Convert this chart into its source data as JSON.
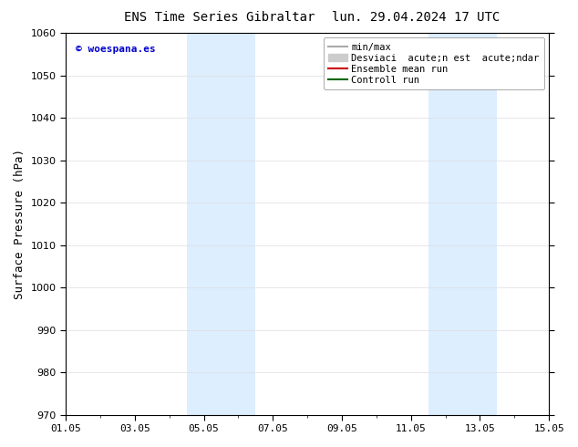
{
  "title_left": "ENS Time Series Gibraltar",
  "title_right": "lun. 29.04.2024 17 UTC",
  "ylabel": "Surface Pressure (hPa)",
  "ylim": [
    970,
    1060
  ],
  "yticks": [
    970,
    980,
    990,
    1000,
    1010,
    1020,
    1030,
    1040,
    1050,
    1060
  ],
  "xtick_labels": [
    "01.05",
    "03.05",
    "05.05",
    "07.05",
    "09.05",
    "11.05",
    "13.05",
    "15.05"
  ],
  "xtick_positions": [
    0,
    2,
    4,
    6,
    8,
    10,
    12,
    14
  ],
  "shaded_bands": [
    {
      "x_start": 3.5,
      "x_end": 4.5
    },
    {
      "x_start": 4.5,
      "x_end": 5.5
    },
    {
      "x_start": 10.5,
      "x_end": 11.5
    },
    {
      "x_start": 11.5,
      "x_end": 12.5
    }
  ],
  "shade_color": "#ddeeff",
  "watermark_text": "© woespana.es",
  "watermark_color": "#0000cc",
  "legend_entries": [
    {
      "label": "min/max",
      "color": "#aaaaaa",
      "lw": 1.5,
      "type": "line"
    },
    {
      "label": "Desviaci  acute;n est  acute;ndar",
      "color": "#cccccc",
      "lw": 8,
      "type": "band"
    },
    {
      "label": "Ensemble mean run",
      "color": "#cc0000",
      "lw": 1.5,
      "type": "line"
    },
    {
      "label": "Controll run",
      "color": "#006600",
      "lw": 1.5,
      "type": "line"
    }
  ],
  "background_color": "#ffffff",
  "title_fontsize": 10,
  "axis_label_fontsize": 9,
  "tick_fontsize": 8,
  "legend_fontsize": 7.5
}
